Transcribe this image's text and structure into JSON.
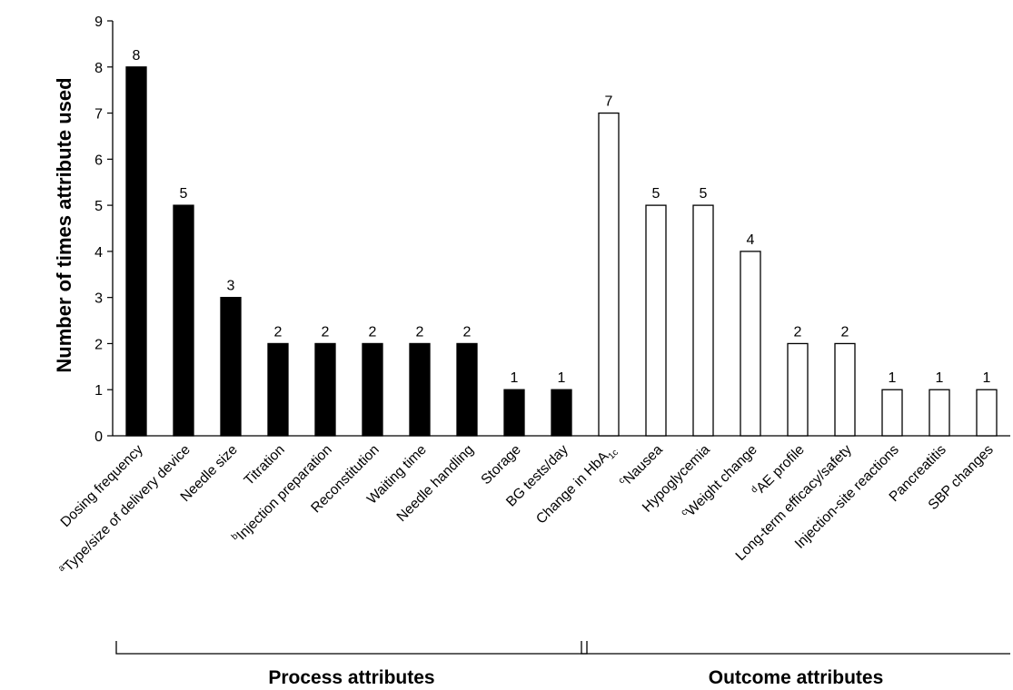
{
  "chart_data": {
    "type": "bar",
    "title": "",
    "ylabel": "Number of times attribute used",
    "xlabel": "",
    "ylim": [
      0,
      9
    ],
    "yticks": [
      0,
      1,
      2,
      3,
      4,
      5,
      6,
      7,
      8,
      9
    ],
    "grid": false,
    "legend": "none",
    "colors": {
      "process": "#000000",
      "outcome": "#ffffff",
      "outline": "#000000"
    },
    "categories": [
      {
        "prefix": "",
        "text": "Dosing frequency",
        "group": "process"
      },
      {
        "prefix": "a",
        "text": "Type/size of delivery device",
        "group": "process"
      },
      {
        "prefix": "",
        "text": "Needle size",
        "group": "process"
      },
      {
        "prefix": "",
        "text": "Titration",
        "group": "process"
      },
      {
        "prefix": "b",
        "text": "Injection preparation",
        "group": "process"
      },
      {
        "prefix": "",
        "text": "Reconstitution",
        "group": "process"
      },
      {
        "prefix": "",
        "text": "Waiting time",
        "group": "process"
      },
      {
        "prefix": "",
        "text": "Needle handling",
        "group": "process"
      },
      {
        "prefix": "",
        "text": "Storage",
        "group": "process"
      },
      {
        "prefix": "",
        "text": "BG tests/day",
        "group": "process"
      },
      {
        "prefix": "",
        "text": "Change in HbA",
        "sub": "1c",
        "group": "outcome"
      },
      {
        "prefix": "c",
        "text": "Nausea",
        "group": "outcome"
      },
      {
        "prefix": "",
        "text": "Hypoglycemia",
        "group": "outcome"
      },
      {
        "prefix": "c",
        "text": "Weight change",
        "group": "outcome"
      },
      {
        "prefix": "d",
        "text": "AE profile",
        "group": "outcome"
      },
      {
        "prefix": "",
        "text": "Long-term efficacy/safety",
        "group": "outcome"
      },
      {
        "prefix": "",
        "text": "Injection-site reactions",
        "group": "outcome"
      },
      {
        "prefix": "",
        "text": "Pancreatitis",
        "group": "outcome"
      },
      {
        "prefix": "",
        "text": "SBP changes",
        "group": "outcome"
      }
    ],
    "values": [
      8,
      5,
      3,
      2,
      2,
      2,
      2,
      2,
      1,
      1,
      7,
      5,
      5,
      4,
      2,
      2,
      1,
      1,
      1
    ],
    "groups": [
      {
        "name": "Process attributes",
        "key": "process"
      },
      {
        "name": "Outcome attributes",
        "key": "outcome"
      }
    ]
  }
}
